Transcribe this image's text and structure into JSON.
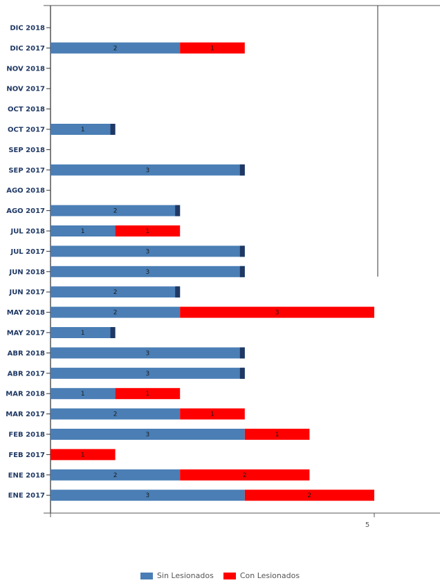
{
  "chart_data": {
    "type": "bar",
    "orientation": "horizontal",
    "stacked": true,
    "categories": [
      "DIC 2018",
      "DIC 2017",
      "NOV 2018",
      "NOV 2017",
      "OCT 2018",
      "OCT 2017",
      "SEP 2018",
      "SEP 2017",
      "AGO 2018",
      "AGO 2017",
      "JUL 2018",
      "JUL 2017",
      "JUN 2018",
      "JUN 2017",
      "MAY 2018",
      "MAY 2017",
      "ABR 2018",
      "ABR 2017",
      "MAR 2018",
      "MAR 2017",
      "FEB 2018",
      "FEB 2017",
      "ENE 2018",
      "ENE 2017"
    ],
    "series": [
      {
        "name": "Sin Lesionados",
        "color": "#4a7eb5",
        "values": [
          0,
          2,
          0,
          0,
          0,
          1,
          0,
          3,
          0,
          2,
          1,
          3,
          3,
          2,
          2,
          1,
          3,
          3,
          1,
          2,
          3,
          0,
          2,
          3
        ]
      },
      {
        "name": "Con Lesionados",
        "color": "#ff0000",
        "values": [
          0,
          1,
          0,
          0,
          0,
          0,
          0,
          0,
          0,
          0,
          1,
          0,
          0,
          0,
          3,
          0,
          0,
          0,
          1,
          1,
          1,
          1,
          2,
          2
        ]
      }
    ],
    "xlim": [
      0,
      5
    ],
    "xticks": [
      0,
      5
    ],
    "xtick_labels": [
      "",
      "5"
    ],
    "grid": false,
    "legend_position": "bottom"
  }
}
